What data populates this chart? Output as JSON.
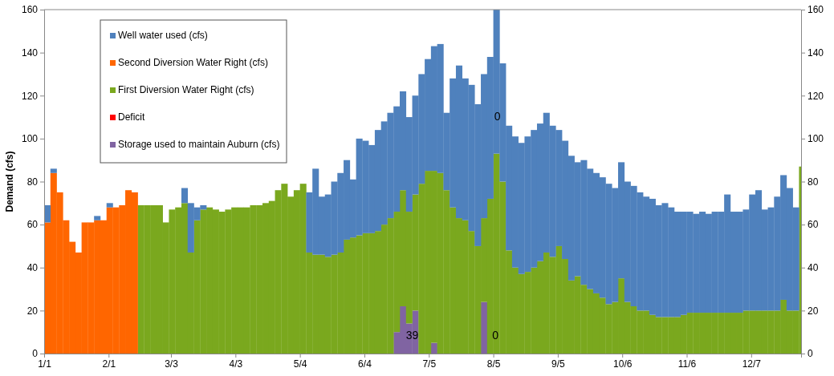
{
  "chart_data": {
    "type": "bar",
    "stacked": true,
    "ylabel": "Demand (cfs)",
    "legend": "top left",
    "grid": false,
    "x": [
      "--01-01",
      "--01-04",
      "--01-07",
      "--01-10",
      "--01-13",
      "--01-16",
      "--01-19",
      "--01-22",
      "--01-25",
      "--01-28",
      "--01-31",
      "--02-03",
      "--02-06",
      "--02-09",
      "--02-12",
      "--02-15",
      "--02-18",
      "--02-21",
      "--02-24",
      "--02-27",
      "--03-02",
      "--03-05",
      "--03-08",
      "--03-11",
      "--03-14",
      "--03-17",
      "--03-20",
      "--03-23",
      "--03-26",
      "--03-29",
      "--04-01",
      "--04-04",
      "--04-07",
      "--04-10",
      "--04-13",
      "--04-16",
      "--04-19",
      "--04-22",
      "--04-25",
      "--04-28",
      "--05-01",
      "--05-04",
      "--05-07",
      "--05-10",
      "--05-13",
      "--05-16",
      "--05-19",
      "--05-22",
      "--05-25",
      "--05-28",
      "--05-31",
      "--06-03",
      "--06-06",
      "--06-09",
      "--06-12",
      "--06-15",
      "--06-18",
      "--06-21",
      "--06-24",
      "--06-27",
      "--06-30",
      "--07-03",
      "--07-06",
      "--07-09",
      "--07-12",
      "--07-15",
      "--07-18",
      "--07-21",
      "--07-24",
      "--07-27",
      "--07-30",
      "--08-02",
      "--08-05",
      "--08-08",
      "--08-11",
      "--08-14",
      "--08-17",
      "--08-20",
      "--08-23",
      "--08-26",
      "--08-29",
      "--09-01",
      "--09-04",
      "--09-07",
      "--09-10",
      "--09-13",
      "--09-16",
      "--09-19",
      "--09-22",
      "--09-25",
      "--09-28",
      "--10-01",
      "--10-04",
      "--10-07",
      "--10-10",
      "--10-13",
      "--10-16",
      "--10-19",
      "--10-22",
      "--10-25",
      "--10-28",
      "--10-31",
      "--11-03",
      "--11-06",
      "--11-09",
      "--11-12",
      "--11-15",
      "--11-18",
      "--11-21",
      "--11-24",
      "--11-27",
      "--11-30",
      "--12-03",
      "--12-06",
      "--12-09",
      "--12-12",
      "--12-15",
      "--12-18",
      "--12-21",
      "--12-24",
      "--12-27",
      "--12-30"
    ],
    "xlim": [
      "--01-01",
      "--12-31"
    ],
    "xticks": [
      {
        "value": "--01-01",
        "label": "1/1"
      },
      {
        "value": "--02-01",
        "label": "2/1"
      },
      {
        "value": "--03-03",
        "label": "3/3"
      },
      {
        "value": "--04-03",
        "label": "4/3"
      },
      {
        "value": "--05-04",
        "label": "5/4"
      },
      {
        "value": "--06-04",
        "label": "6/4"
      },
      {
        "value": "--07-05",
        "label": "7/5"
      },
      {
        "value": "--08-05",
        "label": "8/5"
      },
      {
        "value": "--09-05",
        "label": "9/5"
      },
      {
        "value": "--10-06",
        "label": "10/6"
      },
      {
        "value": "--11-06",
        "label": "11/6"
      },
      {
        "value": "--12-07",
        "label": "12/7"
      }
    ],
    "ylim": [
      0,
      160
    ],
    "yticks": [
      0,
      20,
      40,
      60,
      80,
      100,
      120,
      140,
      160
    ],
    "y2lim": [
      0,
      160
    ],
    "y2ticks": [
      0,
      20,
      40,
      60,
      80,
      100,
      120,
      140,
      160
    ],
    "series": [
      {
        "name": "Storage used to maintain Auburn (cfs)",
        "color": "#8064a2",
        "values": [
          null,
          null,
          null,
          null,
          null,
          null,
          null,
          null,
          null,
          null,
          null,
          null,
          null,
          null,
          null,
          null,
          null,
          null,
          null,
          null,
          null,
          null,
          null,
          null,
          null,
          null,
          null,
          null,
          null,
          null,
          null,
          null,
          null,
          null,
          null,
          null,
          null,
          null,
          null,
          null,
          null,
          null,
          null,
          null,
          null,
          null,
          null,
          null,
          null,
          null,
          null,
          null,
          null,
          null,
          null,
          null,
          10,
          22,
          14,
          20,
          null,
          null,
          5,
          null,
          null,
          null,
          null,
          null,
          null,
          null,
          24,
          null,
          null,
          null,
          null,
          null,
          null,
          null,
          null,
          null,
          null,
          null,
          null,
          null,
          null,
          null,
          null,
          null,
          null,
          null,
          null,
          null,
          null,
          null,
          null,
          null,
          null,
          null,
          null,
          null,
          null,
          null,
          null,
          null,
          null,
          null,
          null,
          null,
          null,
          null,
          null,
          null,
          null,
          null,
          null,
          null,
          null,
          null,
          null,
          null,
          null,
          null
        ]
      },
      {
        "name": "Deficit",
        "color": "#ff0000",
        "values": [
          null,
          null,
          null,
          null,
          null,
          null,
          null,
          null,
          null,
          null,
          null,
          null,
          null,
          null,
          null,
          null,
          null,
          null,
          null,
          null,
          null,
          null,
          null,
          null,
          null,
          null,
          null,
          null,
          null,
          null,
          null,
          null,
          null,
          null,
          null,
          null,
          null,
          null,
          null,
          null,
          null,
          null,
          null,
          null,
          null,
          null,
          null,
          null,
          null,
          null,
          null,
          null,
          null,
          null,
          null,
          null,
          null,
          null,
          null,
          null,
          null,
          null,
          null,
          null,
          null,
          null,
          null,
          null,
          null,
          null,
          null,
          null,
          null,
          null,
          null,
          null,
          null,
          null,
          null,
          null,
          null,
          null,
          null,
          null,
          null,
          null,
          null,
          null,
          null,
          null,
          null,
          null,
          null,
          null,
          null,
          null,
          null,
          null,
          null,
          null,
          null,
          null,
          null,
          null,
          null,
          null,
          null,
          null,
          null,
          null,
          null,
          null,
          null,
          null,
          null,
          null,
          null,
          null,
          null,
          null,
          null,
          null
        ]
      },
      {
        "name": "First Diversion Water Right (cfs)",
        "color": "#7aa81e",
        "values": [
          null,
          null,
          null,
          null,
          null,
          null,
          null,
          null,
          null,
          null,
          null,
          null,
          null,
          null,
          null,
          69,
          69,
          69,
          69,
          61,
          67,
          68,
          70,
          47,
          62,
          67,
          68,
          67,
          66,
          67,
          68,
          68,
          68,
          69,
          69,
          70,
          71,
          76,
          79,
          73,
          76,
          79,
          47,
          46,
          46,
          45,
          46,
          47,
          53,
          54,
          55,
          56,
          56,
          57,
          60,
          63,
          56,
          54,
          52,
          54,
          79,
          85,
          80,
          84,
          76,
          68,
          63,
          62,
          57,
          50,
          39,
          72,
          93,
          80,
          48,
          40,
          37,
          38,
          40,
          43,
          47,
          45,
          50,
          44,
          34,
          36,
          32,
          30,
          28,
          26,
          23,
          24,
          35,
          24,
          22,
          20,
          20,
          18,
          17,
          17,
          17,
          17,
          18,
          19,
          19,
          19,
          19,
          19,
          19,
          19,
          19,
          19,
          20,
          20,
          20,
          20,
          20,
          20,
          25,
          20,
          20,
          87
        ]
      },
      {
        "name": "Second Diversion Water Right (cfs)",
        "color": "#ff6600",
        "values": [
          61,
          84,
          75,
          62,
          52,
          47,
          61,
          61,
          62,
          62,
          68,
          68,
          69,
          76,
          75,
          null,
          null,
          null,
          null,
          null,
          null,
          null,
          null,
          null,
          null,
          null,
          null,
          null,
          null,
          null,
          null,
          null,
          null,
          null,
          null,
          null,
          null,
          null,
          null,
          null,
          null,
          null,
          null,
          null,
          null,
          null,
          null,
          null,
          null,
          null,
          null,
          null,
          null,
          null,
          null,
          null,
          null,
          null,
          null,
          null,
          null,
          null,
          null,
          null,
          null,
          null,
          null,
          null,
          null,
          null,
          null,
          null,
          null,
          null,
          null,
          null,
          null,
          null,
          null,
          null,
          null,
          null,
          null,
          null,
          null,
          null,
          null,
          null,
          null,
          null,
          null,
          null,
          null,
          null,
          null,
          null,
          null,
          null,
          null,
          null,
          null,
          null,
          null,
          null,
          null,
          null,
          null,
          null,
          null,
          null,
          null,
          null,
          null,
          null,
          null,
          null,
          null,
          null,
          null,
          null,
          null,
          null
        ]
      },
      {
        "name": "Well water used (cfs)",
        "color": "#4f81bd",
        "values": [
          8,
          2,
          null,
          null,
          null,
          null,
          null,
          null,
          2,
          null,
          2,
          null,
          null,
          null,
          null,
          null,
          null,
          null,
          null,
          null,
          null,
          null,
          7,
          23,
          6,
          2,
          null,
          null,
          null,
          null,
          null,
          null,
          null,
          null,
          null,
          null,
          null,
          null,
          null,
          null,
          null,
          null,
          28,
          40,
          27,
          29,
          34,
          37,
          37,
          27,
          45,
          43,
          41,
          47,
          48,
          49,
          49,
          46,
          44,
          46,
          51,
          52,
          58,
          60,
          36,
          60,
          71,
          66,
          68,
          66,
          67,
          66,
          67,
          55,
          58,
          61,
          61,
          63,
          64,
          64,
          65,
          61,
          54,
          55,
          58,
          53,
          58,
          56,
          56,
          56,
          56,
          53,
          54,
          56,
          56,
          55,
          53,
          54,
          52,
          53,
          51,
          49,
          48,
          47,
          46,
          47,
          46,
          47,
          47,
          55,
          47,
          47,
          47,
          54,
          56,
          47,
          48,
          53,
          58,
          57,
          48,
          null
        ]
      }
    ],
    "annotations": [
      {
        "text": "0",
        "x": "--08-07",
        "y": 110
      },
      {
        "text": "39",
        "x": "--06-27",
        "y": 8
      },
      {
        "text": "0",
        "x": "--08-06",
        "y": 8
      }
    ]
  }
}
